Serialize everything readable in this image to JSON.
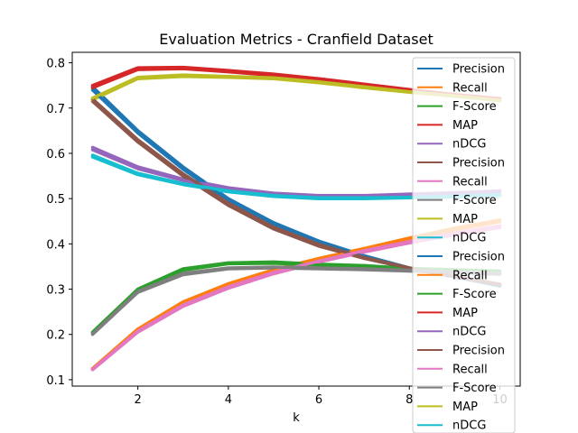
{
  "chart_data": {
    "type": "line",
    "title": "Evaluation Metrics - Cranfield Dataset",
    "xlabel": "k",
    "ylabel": "",
    "xlim": [
      0.55,
      10.45
    ],
    "ylim": [
      0.0859,
      0.8231
    ],
    "xticks": [
      2,
      4,
      6,
      8,
      10
    ],
    "yticks": [
      0.1,
      0.2,
      0.3,
      0.4,
      0.5,
      0.6,
      0.7,
      0.8
    ],
    "grid": false,
    "legend_position": "right",
    "x": [
      1,
      2,
      3,
      4,
      5,
      6,
      7,
      8,
      9,
      10
    ],
    "series": [
      {
        "name": "Precision",
        "color": "#1f77b4",
        "values": [
          0.747,
          0.65,
          0.57,
          0.5,
          0.447,
          0.406,
          0.374,
          0.347,
          0.327,
          0.307
        ]
      },
      {
        "name": "Recall",
        "color": "#ff7f0e",
        "values": [
          0.125,
          0.212,
          0.272,
          0.312,
          0.343,
          0.368,
          0.39,
          0.413,
          0.435,
          0.453
        ]
      },
      {
        "name": "F-Score",
        "color": "#2ca02c",
        "values": [
          0.205,
          0.3,
          0.345,
          0.358,
          0.36,
          0.355,
          0.352,
          0.346,
          0.343,
          0.34
        ]
      },
      {
        "name": "MAP",
        "color": "#d62728",
        "values": [
          0.75,
          0.789,
          0.79,
          0.783,
          0.775,
          0.765,
          0.753,
          0.741,
          0.73,
          0.721
        ]
      },
      {
        "name": "nDCG",
        "color": "#9467bd",
        "values": [
          0.613,
          0.57,
          0.543,
          0.524,
          0.512,
          0.507,
          0.507,
          0.51,
          0.513,
          0.517
        ]
      },
      {
        "name": "Precision",
        "color": "#8c564b",
        "values": [
          0.715,
          0.625,
          0.55,
          0.485,
          0.433,
          0.395,
          0.368,
          0.346,
          0.328,
          0.311
        ]
      },
      {
        "name": "Recall",
        "color": "#e377c2",
        "values": [
          0.122,
          0.205,
          0.262,
          0.302,
          0.334,
          0.36,
          0.382,
          0.402,
          0.42,
          0.436
        ]
      },
      {
        "name": "F-Score",
        "color": "#7f7f7f",
        "values": [
          0.2,
          0.293,
          0.332,
          0.345,
          0.347,
          0.345,
          0.343,
          0.34,
          0.336,
          0.333
        ]
      },
      {
        "name": "MAP",
        "color": "#bcbd22",
        "values": [
          0.718,
          0.765,
          0.77,
          0.768,
          0.765,
          0.756,
          0.745,
          0.735,
          0.726,
          0.716
        ]
      },
      {
        "name": "nDCG",
        "color": "#17becf",
        "values": [
          0.592,
          0.553,
          0.531,
          0.515,
          0.505,
          0.5,
          0.5,
          0.502,
          0.504,
          0.507
        ]
      },
      {
        "name": "Precision",
        "color": "#1f77b4",
        "values": [
          0.74,
          0.645,
          0.565,
          0.496,
          0.444,
          0.403,
          0.372,
          0.346,
          0.327,
          0.308
        ]
      },
      {
        "name": "Recall",
        "color": "#ff7f0e",
        "values": [
          0.124,
          0.21,
          0.27,
          0.31,
          0.34,
          0.366,
          0.388,
          0.41,
          0.431,
          0.449
        ]
      },
      {
        "name": "F-Score",
        "color": "#2ca02c",
        "values": [
          0.204,
          0.299,
          0.342,
          0.356,
          0.357,
          0.353,
          0.35,
          0.345,
          0.341,
          0.338
        ]
      },
      {
        "name": "MAP",
        "color": "#d62728",
        "values": [
          0.745,
          0.785,
          0.787,
          0.78,
          0.772,
          0.762,
          0.75,
          0.739,
          0.729,
          0.72
        ]
      },
      {
        "name": "nDCG",
        "color": "#9467bd",
        "values": [
          0.608,
          0.566,
          0.54,
          0.522,
          0.51,
          0.505,
          0.505,
          0.508,
          0.511,
          0.515
        ]
      },
      {
        "name": "Precision",
        "color": "#8c564b",
        "values": [
          0.72,
          0.63,
          0.555,
          0.49,
          0.437,
          0.399,
          0.37,
          0.347,
          0.328,
          0.31
        ]
      },
      {
        "name": "Recall",
        "color": "#e377c2",
        "values": [
          0.123,
          0.207,
          0.265,
          0.305,
          0.337,
          0.362,
          0.385,
          0.405,
          0.424,
          0.44
        ]
      },
      {
        "name": "F-Score",
        "color": "#7f7f7f",
        "values": [
          0.201,
          0.295,
          0.335,
          0.347,
          0.349,
          0.347,
          0.345,
          0.342,
          0.338,
          0.335
        ]
      },
      {
        "name": "MAP",
        "color": "#bcbd22",
        "values": [
          0.722,
          0.768,
          0.773,
          0.77,
          0.767,
          0.758,
          0.747,
          0.736,
          0.727,
          0.717
        ]
      },
      {
        "name": "nDCG",
        "color": "#17becf",
        "values": [
          0.596,
          0.556,
          0.533,
          0.517,
          0.507,
          0.502,
          0.502,
          0.503,
          0.506,
          0.509
        ]
      }
    ]
  }
}
